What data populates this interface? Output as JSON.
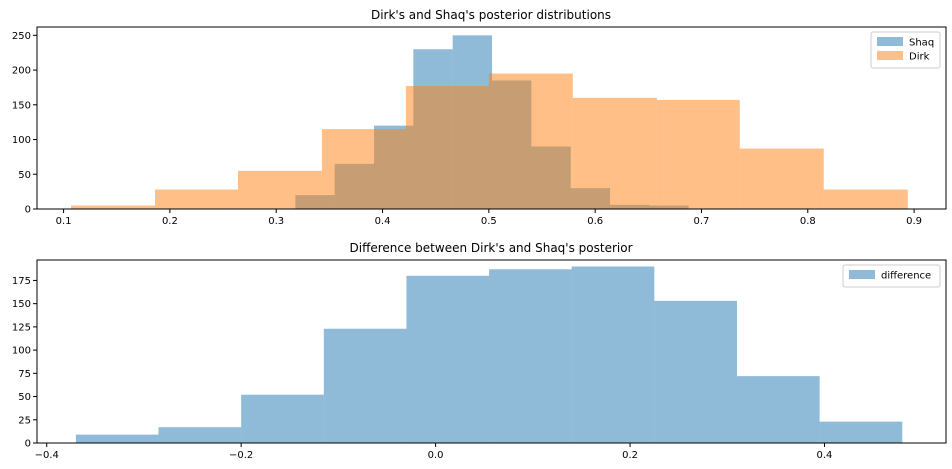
{
  "colors": {
    "blue": "#1f77b4",
    "orange": "#ff7f0e",
    "bar_alpha": 0.5
  },
  "chart_data": [
    {
      "type": "bar",
      "title": "Dirk's and Shaq's posterior distributions",
      "xlim": [
        0.075,
        0.93
      ],
      "ylim": [
        0,
        262
      ],
      "xticks": [
        0.1,
        0.2,
        0.3,
        0.4,
        0.5,
        0.6,
        0.7,
        0.8,
        0.9
      ],
      "xtick_labels": [
        "0.1",
        "0.2",
        "0.3",
        "0.4",
        "0.5",
        "0.6",
        "0.7",
        "0.8",
        "0.9"
      ],
      "yticks": [
        0,
        50,
        100,
        150,
        200,
        250
      ],
      "ytick_labels": [
        "0",
        "50",
        "100",
        "150",
        "200",
        "250"
      ],
      "legend_position": "top-right",
      "series": [
        {
          "name": "Shaq",
          "color": "#1f77b4",
          "bins": [
            0.318,
            0.355,
            0.392,
            0.429,
            0.466,
            0.503,
            0.54,
            0.577,
            0.614,
            0.651,
            0.688
          ],
          "counts": [
            20,
            65,
            120,
            230,
            250,
            185,
            90,
            30,
            6,
            5
          ]
        },
        {
          "name": "Dirk",
          "color": "#ff7f0e",
          "bins": [
            0.107,
            0.186,
            0.264,
            0.343,
            0.422,
            0.5,
            0.579,
            0.658,
            0.736,
            0.815,
            0.894
          ],
          "counts": [
            5,
            28,
            55,
            115,
            177,
            195,
            160,
            157,
            87,
            28
          ]
        }
      ]
    },
    {
      "type": "bar",
      "title": "Difference between Dirk's and Shaq's posterior",
      "xlim": [
        -0.41,
        0.525
      ],
      "ylim": [
        0,
        197
      ],
      "xticks": [
        -0.4,
        -0.2,
        0.0,
        0.2,
        0.4
      ],
      "xtick_labels": [
        "−0.4",
        "−0.2",
        "0.0",
        "0.2",
        "0.4"
      ],
      "yticks": [
        0,
        25,
        50,
        75,
        100,
        125,
        150,
        175
      ],
      "ytick_labels": [
        "0",
        "25",
        "50",
        "75",
        "100",
        "125",
        "150",
        "175"
      ],
      "legend_position": "top-right",
      "series": [
        {
          "name": "difference",
          "color": "#1f77b4",
          "bins": [
            -0.37,
            -0.285,
            -0.2,
            -0.115,
            -0.03,
            0.055,
            0.14,
            0.225,
            0.31,
            0.395,
            0.48
          ],
          "counts": [
            9,
            17,
            52,
            123,
            180,
            187,
            190,
            153,
            72,
            23
          ]
        }
      ]
    }
  ]
}
